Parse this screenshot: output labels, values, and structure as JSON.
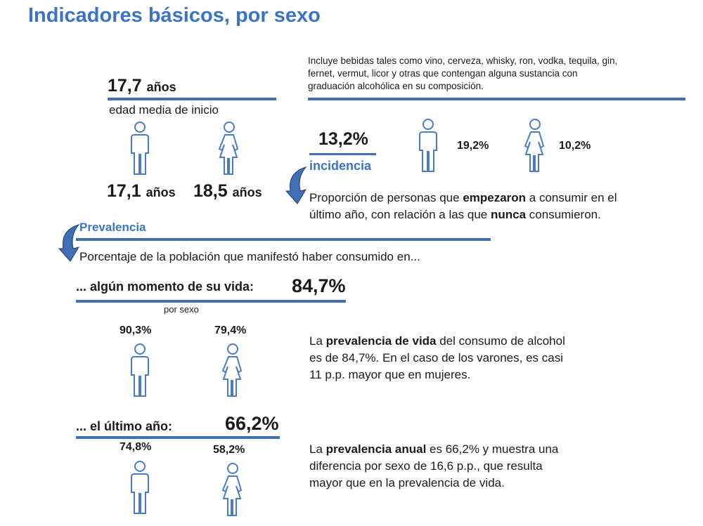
{
  "title": "Indicadores básicos, por sexo",
  "onset": {
    "value": "17,7",
    "unit": "años",
    "label": "edad media de inicio",
    "male": "17,1",
    "female": "18,5"
  },
  "note": [
    "Incluye bebidas tales como vino, cerveza, whisky, ron, vodka, tequila, gin,",
    "fernet, vermut, licor y otras que contengan alguna sustancia con",
    "graduación alcohólica en su composición."
  ],
  "incidence": {
    "value": "13,2%",
    "label": "incidencia",
    "male": "19,2%",
    "female": "10,2%",
    "desc": {
      "p1": "Proporción de personas que ",
      "b1": "empezaron",
      "p2": " a consumir en el",
      "p3": "último año, con relación a las que ",
      "b2": "nunca",
      "p4": " consumieron."
    }
  },
  "prevalence": {
    "label": "Prevalencia",
    "desc": "Porcentaje de la población que manifestó haber consumido en...",
    "life": {
      "label": "... algún momento de su vida:",
      "value": "84,7%",
      "by_sex": "por sexo",
      "male": "90,3%",
      "female": "79,4%",
      "text": {
        "p1": "La ",
        "b": "prevalencia de vida",
        "p2": " del consumo de alcohol",
        "l2": "es de 84,7%. En el caso de los varones, es casi",
        "l3": "11 p.p. mayor que en mujeres."
      }
    },
    "year": {
      "label": "... el último año:",
      "value": "66,2%",
      "male": "74,8%",
      "female": "58,2%",
      "text": {
        "p1": "La ",
        "b": "prevalencia anual",
        "p2": " es 66,2% y muestra una",
        "l2": "diferencia por sexo de 16,6 p.p., que resulta",
        "l3": "mayor que en la prevalencia de vida."
      }
    }
  }
}
